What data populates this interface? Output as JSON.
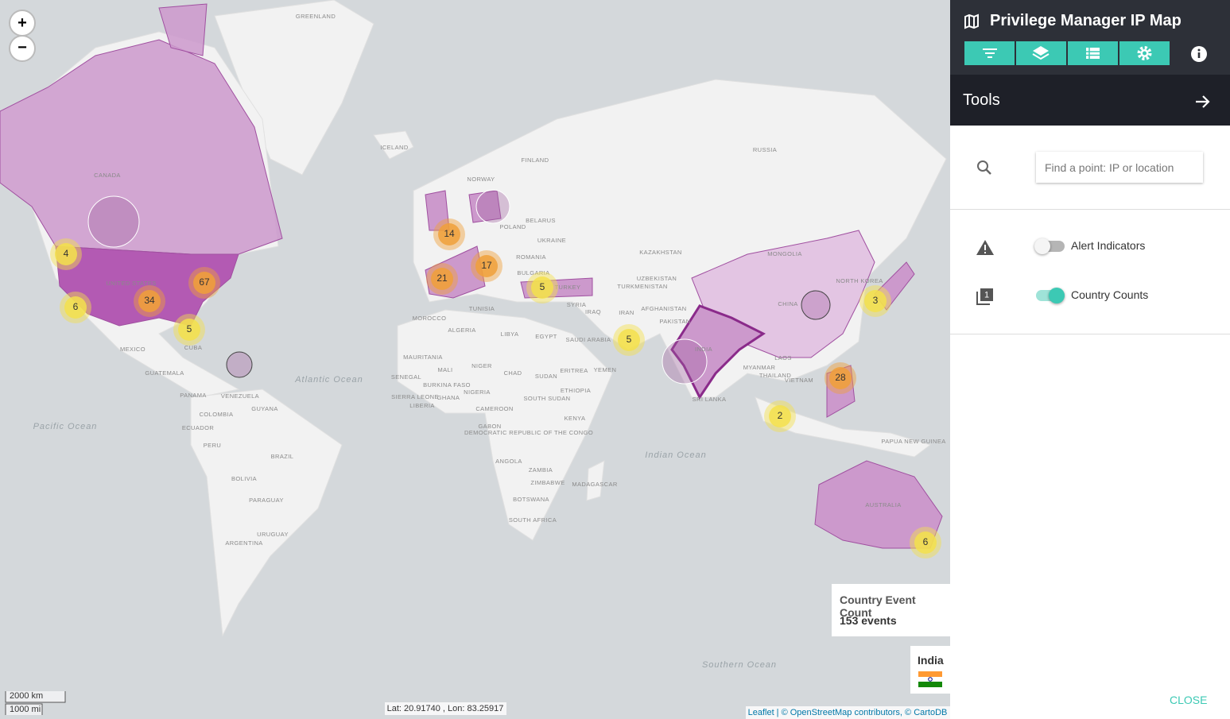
{
  "header": {
    "title": "Privilege Manager IP Map"
  },
  "panel": {
    "heading": "Tools",
    "search_placeholder": "Find a point: IP or location",
    "toggles": [
      {
        "label": "Alert Indicators",
        "on": false
      },
      {
        "label": "Country Counts",
        "on": true
      }
    ],
    "close": "CLOSE"
  },
  "map": {
    "zoom": [
      "+",
      "−"
    ],
    "labels": [
      "GREENLAND",
      "ICELAND",
      "CANADA",
      "UNITED STATES",
      "MEXICO",
      "CUBA",
      "GUATEMALA",
      "PANAMA",
      "VENEZUELA",
      "COLOMBIA",
      "GUYANA",
      "ECUADOR",
      "PERU",
      "BRAZIL",
      "BOLIVIA",
      "PARAGUAY",
      "URUGUAY",
      "ARGENTINA",
      "FINLAND",
      "NORWAY",
      "RUSSIA",
      "BELARUS",
      "POLAND",
      "UKRAINE",
      "ROMANIA",
      "BULGARIA",
      "KAZAKHSTAN",
      "MONGOLIA",
      "UZBEKISTAN",
      "TURKMENISTAN",
      "TURKEY",
      "SYRIA",
      "IRAQ",
      "IRAN",
      "AFGHANISTAN",
      "PAKISTAN",
      "CHINA",
      "NORTH KOREA",
      "TUNISIA",
      "MOROCCO",
      "ALGERIA",
      "LIBYA",
      "EGYPT",
      "SAUDI ARABIA",
      "YEMEN",
      "INDIA",
      "MYANMAR",
      "LAOS",
      "THAILAND",
      "VIETNAM",
      "SRI LANKA",
      "MAURITANIA",
      "MALI",
      "NIGER",
      "CHAD",
      "SUDAN",
      "ERITREA",
      "SENEGAL",
      "BURKINA FASO",
      "SIERRA LEONE",
      "GHANA",
      "NIGERIA",
      "LIBERIA",
      "ETHIOPIA",
      "SOUTH SUDAN",
      "CAMEROON",
      "KENYA",
      "GABON",
      "DEMOCRATIC REPUBLIC OF THE CONGO",
      "ANGOLA",
      "ZAMBIA",
      "ZIMBABWE",
      "MADAGASCAR",
      "BOTSWANA",
      "SOUTH AFRICA",
      "PAPUA NEW GUINEA",
      "AUSTRALIA"
    ],
    "oceans": [
      "Atlantic Ocean",
      "Pacific Ocean",
      "Indian Ocean",
      "Southern Ocean"
    ],
    "clusters": [
      {
        "count": 4,
        "color": "#f3e04c"
      },
      {
        "count": 6,
        "color": "#f3e04c"
      },
      {
        "count": 34,
        "color": "#f0a03a"
      },
      {
        "count": 67,
        "color": "#f0a03a"
      },
      {
        "count": 5,
        "color": "#f3e04c"
      },
      {
        "count": 14,
        "color": "#f0a03a"
      },
      {
        "count": 21,
        "color": "#f0a03a"
      },
      {
        "count": 17,
        "color": "#f0a03a"
      },
      {
        "count": 5,
        "color": "#f3e04c"
      },
      {
        "count": 5,
        "color": "#f3e04c"
      },
      {
        "count": 28,
        "color": "#f0a03a"
      },
      {
        "count": 2,
        "color": "#f3e04c"
      },
      {
        "count": 3,
        "color": "#f3e04c"
      },
      {
        "count": 6,
        "color": "#f3e04c"
      }
    ],
    "legend": {
      "title": "Country Event Count",
      "value": "153 events"
    },
    "hover_country": "India",
    "scale": [
      "2000 km",
      "1000 mi"
    ],
    "coordinates": "Lat: 20.91740 , Lon: 83.25917",
    "attribution": "Leaflet | © OpenStreetMap contributors, © CartoDB"
  }
}
